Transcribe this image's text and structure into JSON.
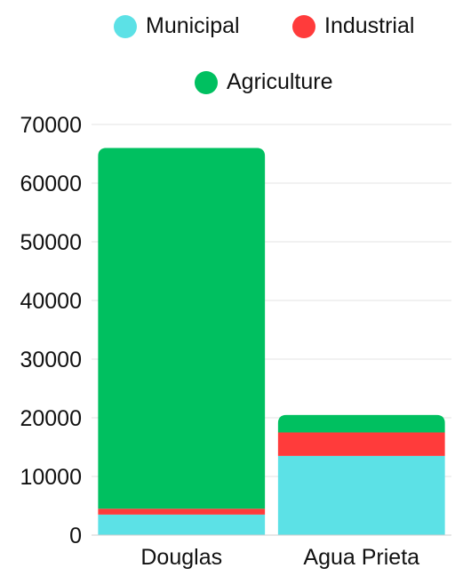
{
  "chart_data": {
    "type": "bar",
    "stacked": true,
    "categories": [
      "Douglas",
      "Agua Prieta"
    ],
    "series": [
      {
        "name": "Municipal",
        "color": "#5ce1e6",
        "values": [
          3500,
          13500
        ]
      },
      {
        "name": "Industrial",
        "color": "#ff3b3b",
        "values": [
          1000,
          4000
        ]
      },
      {
        "name": "Agriculture",
        "color": "#00c060",
        "values": [
          61500,
          3000
        ]
      }
    ],
    "ylim": [
      0,
      70000
    ],
    "yticks": [
      0,
      10000,
      20000,
      30000,
      40000,
      50000,
      60000,
      70000
    ],
    "grid": true,
    "legend_position": "top",
    "title": "",
    "xlabel": "",
    "ylabel": ""
  }
}
